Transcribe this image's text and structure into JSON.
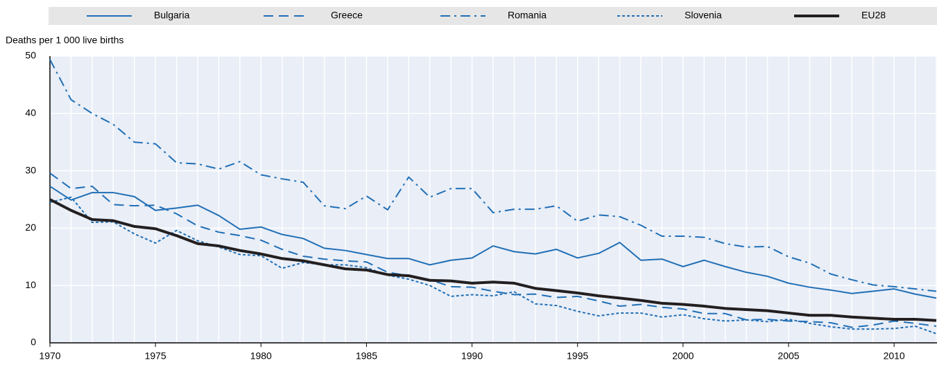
{
  "chart_data": {
    "type": "line",
    "y_label": "Deaths per 1 000 live births",
    "x": [
      1970,
      1971,
      1972,
      1973,
      1974,
      1975,
      1976,
      1977,
      1978,
      1979,
      1980,
      1981,
      1982,
      1983,
      1984,
      1985,
      1986,
      1987,
      1988,
      1989,
      1990,
      1991,
      1992,
      1993,
      1994,
      1995,
      1996,
      1997,
      1998,
      1999,
      2000,
      2001,
      2002,
      2003,
      2004,
      2005,
      2006,
      2007,
      2008,
      2009,
      2010,
      2011,
      2012
    ],
    "xlim": [
      1970,
      2012
    ],
    "xticks": [
      1970,
      1975,
      1980,
      1985,
      1990,
      1995,
      2000,
      2005,
      2010
    ],
    "ylim": [
      0,
      50
    ],
    "yticks": [
      0,
      10,
      20,
      30,
      40,
      50
    ],
    "grid": true,
    "legend": "top",
    "series": [
      {
        "name": "Bulgaria",
        "color": "#1f6eb5",
        "dash": "solid",
        "width": 2,
        "values": [
          27.3,
          24.9,
          26.2,
          26.2,
          25.5,
          23.1,
          23.5,
          24.0,
          22.2,
          19.8,
          20.2,
          18.9,
          18.2,
          16.5,
          16.1,
          15.4,
          14.7,
          14.7,
          13.6,
          14.4,
          14.8,
          16.9,
          15.9,
          15.5,
          16.3,
          14.8,
          15.6,
          17.5,
          14.4,
          14.6,
          13.3,
          14.4,
          13.3,
          12.3,
          11.6,
          10.4,
          9.7,
          9.2,
          8.6,
          9.0,
          9.4,
          8.5,
          7.8
        ]
      },
      {
        "name": "Greece",
        "color": "#1f6eb5",
        "dash": "dashed",
        "width": 2,
        "values": [
          29.6,
          26.9,
          27.3,
          24.1,
          23.9,
          24.0,
          22.5,
          20.4,
          19.3,
          18.7,
          17.9,
          16.3,
          15.1,
          14.6,
          14.3,
          14.1,
          12.3,
          11.7,
          11.0,
          9.8,
          9.7,
          9.0,
          8.4,
          8.5,
          7.9,
          8.1,
          7.3,
          6.4,
          6.7,
          6.2,
          5.9,
          5.1,
          5.1,
          4.0,
          4.1,
          3.8,
          3.7,
          3.5,
          2.7,
          3.1,
          3.8,
          3.4,
          2.9
        ]
      },
      {
        "name": "Romania",
        "color": "#1f6eb5",
        "dash": "dashdot",
        "width": 2,
        "values": [
          49.4,
          42.4,
          40.0,
          38.1,
          35.0,
          34.7,
          31.4,
          31.2,
          30.3,
          31.6,
          29.3,
          28.6,
          28.0,
          23.9,
          23.4,
          25.6,
          23.2,
          28.9,
          25.4,
          26.9,
          26.9,
          22.7,
          23.3,
          23.3,
          23.9,
          21.2,
          22.3,
          22.0,
          20.5,
          18.6,
          18.6,
          18.4,
          17.3,
          16.7,
          16.8,
          15.0,
          13.9,
          12.0,
          11.0,
          10.1,
          9.8,
          9.4,
          9.0
        ]
      },
      {
        "name": "Slovenia",
        "color": "#1f6eb5",
        "dash": "dotted",
        "width": 2,
        "values": [
          24.5,
          25.4,
          21.0,
          21.1,
          19.0,
          17.4,
          19.6,
          17.8,
          16.7,
          15.4,
          15.2,
          13.0,
          14.0,
          13.6,
          13.6,
          13.1,
          11.8,
          11.1,
          10.0,
          8.1,
          8.4,
          8.2,
          8.9,
          6.8,
          6.5,
          5.5,
          4.7,
          5.2,
          5.2,
          4.5,
          4.9,
          4.2,
          3.8,
          4.0,
          3.7,
          4.1,
          3.4,
          2.8,
          2.4,
          2.4,
          2.5,
          2.9,
          1.6
        ]
      },
      {
        "name": "EU28",
        "color": "#231f20",
        "dash": "solid",
        "width": 4,
        "values": [
          25.0,
          23.1,
          21.5,
          21.3,
          20.3,
          19.9,
          18.7,
          17.3,
          16.9,
          16.1,
          15.5,
          14.7,
          14.3,
          13.6,
          12.9,
          12.7,
          11.9,
          11.7,
          10.9,
          10.8,
          10.4,
          10.6,
          10.4,
          9.5,
          9.1,
          8.7,
          8.2,
          7.8,
          7.4,
          6.9,
          6.7,
          6.4,
          6.0,
          5.8,
          5.6,
          5.2,
          4.8,
          4.8,
          4.5,
          4.3,
          4.1,
          4.1,
          3.9
        ]
      }
    ]
  }
}
